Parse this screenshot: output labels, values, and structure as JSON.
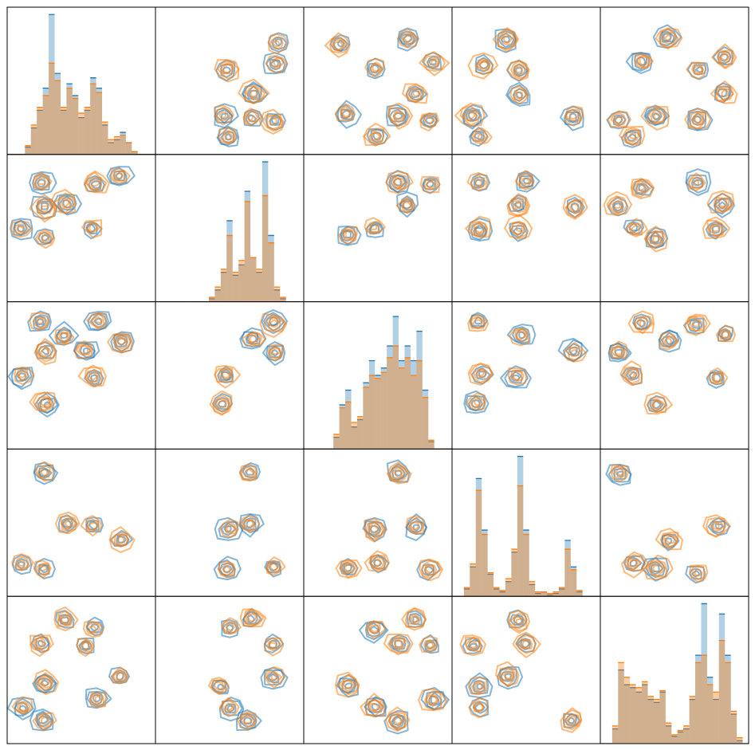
{
  "colors": [
    "#1f77b4",
    "#ff7f0e"
  ],
  "chart_data": [
    {
      "type": "histogram",
      "xlim": [
        0,
        100
      ],
      "ylim": [
        0,
        100
      ],
      "bins": [
        0,
        4,
        8,
        12,
        16,
        20,
        24,
        28,
        32,
        36,
        40,
        44,
        48,
        52,
        56,
        60,
        64,
        68,
        72,
        76,
        80,
        84,
        88,
        92,
        96,
        100
      ],
      "series": [
        {
          "color": "#1f77b4",
          "values": [
            0,
            0,
            0,
            5,
            18,
            30,
            45,
            95,
            55,
            30,
            48,
            40,
            25,
            30,
            52,
            45,
            20,
            8,
            10,
            15,
            8,
            2,
            0,
            0,
            0
          ]
        },
        {
          "color": "#ff7f0e",
          "values": [
            0,
            0,
            0,
            6,
            20,
            32,
            40,
            62,
            50,
            32,
            45,
            38,
            28,
            32,
            48,
            42,
            22,
            10,
            12,
            13,
            8,
            2,
            0,
            0,
            0
          ]
        }
      ]
    },
    {
      "type": "kde",
      "xlim": [
        0,
        100
      ],
      "ylim": [
        0,
        100
      ],
      "x": [
        49,
        81,
        66,
        46,
        64,
        80,
        49,
        82
      ],
      "y": [
        58,
        61,
        41,
        26,
        25,
        23,
        12,
        75
      ]
    },
    {
      "type": "kde",
      "xlim": [
        0,
        100
      ],
      "ylim": [
        0,
        100
      ],
      "x": [
        48,
        75,
        29,
        64,
        85,
        49,
        70,
        88,
        24
      ],
      "y": [
        59,
        41,
        27,
        26,
        23,
        12,
        79,
        62,
        74
      ]
    },
    {
      "type": "kde",
      "xlim": [
        0,
        100
      ],
      "ylim": [
        0,
        100
      ],
      "x": [
        45,
        22,
        45,
        13,
        19,
        82,
        37
      ],
      "y": [
        57,
        61,
        41,
        26,
        12,
        26,
        79
      ]
    },
    {
      "type": "kde",
      "xlim": [
        0,
        100
      ],
      "ylim": [
        0,
        100
      ],
      "x": [
        28,
        66,
        83,
        12,
        38,
        65,
        21,
        46,
        84
      ],
      "y": [
        63,
        57,
        42,
        24,
        27,
        23,
        12,
        79,
        66
      ]
    },
    {
      "type": "kde",
      "xlim": [
        0,
        100
      ],
      "ylim": [
        0,
        100
      ],
      "x": [
        23,
        59,
        25,
        40,
        10,
        26,
        57,
        76
      ],
      "y": [
        81,
        80,
        64,
        67,
        50,
        44,
        50,
        86
      ]
    },
    {
      "type": "histogram",
      "xlim": [
        0,
        100
      ],
      "ylim": [
        0,
        100
      ],
      "bins": [
        0,
        4,
        8,
        12,
        16,
        20,
        24,
        28,
        32,
        36,
        40,
        44,
        48,
        52,
        56,
        60,
        64,
        68,
        72,
        76,
        80,
        84,
        88,
        92,
        96,
        100
      ],
      "series": [
        {
          "color": "#1f77b4",
          "values": [
            0,
            0,
            0,
            0,
            0,
            0,
            0,
            0,
            0,
            2,
            8,
            20,
            55,
            18,
            25,
            75,
            30,
            20,
            95,
            45,
            8,
            2,
            0,
            0,
            0
          ]
        },
        {
          "color": "#ff7f0e",
          "values": [
            0,
            0,
            0,
            0,
            0,
            0,
            0,
            0,
            0,
            3,
            10,
            22,
            45,
            20,
            28,
            68,
            30,
            22,
            72,
            40,
            10,
            3,
            0,
            0,
            0
          ]
        }
      ]
    },
    {
      "type": "kde",
      "xlim": [
        0,
        100
      ],
      "ylim": [
        0,
        100
      ],
      "x": [
        85,
        69,
        48,
        30,
        64
      ],
      "y": [
        80,
        66,
        50,
        45,
        80
      ]
    },
    {
      "type": "kde",
      "xlim": [
        0,
        100
      ],
      "ylim": [
        0,
        100
      ],
      "x": [
        18,
        50,
        45,
        82,
        18,
        45
      ],
      "y": [
        80,
        81,
        66,
        65,
        49,
        49
      ]
    },
    {
      "type": "kde",
      "xlim": [
        0,
        100
      ],
      "ylim": [
        0,
        100
      ],
      "x": [
        28,
        65,
        83,
        12,
        23,
        38,
        78
      ],
      "y": [
        78,
        81,
        66,
        65,
        50,
        43,
        50
      ]
    },
    {
      "type": "kde",
      "xlim": [
        0,
        100
      ],
      "ylim": [
        0,
        100
      ],
      "x": [
        23,
        39,
        25,
        61,
        53,
        10,
        58,
        26,
        77
      ],
      "y": [
        86,
        77,
        66,
        87,
        66,
        50,
        49,
        31,
        72
      ]
    },
    {
      "type": "kde",
      "xlim": [
        0,
        100
      ],
      "ylim": [
        0,
        100
      ],
      "x": [
        80,
        66,
        81,
        48,
        45
      ],
      "y": [
        86,
        75,
        66,
        50,
        31
      ]
    },
    {
      "type": "histogram",
      "xlim": [
        0,
        100
      ],
      "ylim": [
        0,
        100
      ],
      "bins": [
        0,
        4,
        8,
        12,
        16,
        20,
        24,
        28,
        32,
        36,
        40,
        44,
        48,
        52,
        56,
        60,
        64,
        68,
        72,
        76,
        80,
        84,
        88,
        92,
        96,
        100
      ],
      "series": [
        {
          "color": "#1f77b4",
          "values": [
            0,
            0,
            0,
            0,
            0,
            8,
            30,
            40,
            15,
            20,
            45,
            60,
            50,
            55,
            70,
            90,
            60,
            70,
            60,
            80,
            40,
            5,
            0,
            0,
            0
          ]
        },
        {
          "color": "#ff7f0e",
          "values": [
            0,
            0,
            0,
            0,
            0,
            10,
            28,
            32,
            18,
            22,
            42,
            50,
            48,
            52,
            62,
            70,
            55,
            62,
            50,
            60,
            35,
            6,
            0,
            0,
            0
          ]
        }
      ]
    },
    {
      "type": "kde",
      "xlim": [
        0,
        100
      ],
      "ylim": [
        0,
        100
      ],
      "x": [
        18,
        47,
        82,
        20,
        43,
        17
      ],
      "y": [
        86,
        77,
        66,
        51,
        49,
        31
      ]
    },
    {
      "type": "kde",
      "xlim": [
        0,
        100
      ],
      "ylim": [
        0,
        100
      ],
      "x": [
        28,
        65,
        84,
        13,
        22,
        79,
        38,
        46
      ],
      "y": [
        86,
        85,
        77,
        66,
        51,
        49,
        31,
        73
      ]
    },
    {
      "type": "kde",
      "xlim": [
        0,
        100
      ],
      "ylim": [
        0,
        100
      ],
      "x": [
        25,
        41,
        58,
        10,
        25,
        77
      ],
      "y": [
        84,
        49,
        48,
        22,
        18,
        38
      ]
    },
    {
      "type": "kde",
      "xlim": [
        0,
        100
      ],
      "ylim": [
        0,
        100
      ],
      "x": [
        63,
        50,
        63,
        49,
        79
      ],
      "y": [
        84,
        45,
        49,
        19,
        19
      ]
    },
    {
      "type": "kde",
      "xlim": [
        0,
        100
      ],
      "ylim": [
        0,
        100
      ],
      "x": [
        64,
        48,
        75,
        30,
        49,
        85
      ],
      "y": [
        84,
        45,
        48,
        19,
        22,
        19
      ]
    },
    {
      "type": "histogram",
      "xlim": [
        0,
        100
      ],
      "ylim": [
        0,
        100
      ],
      "bins": [
        0,
        4,
        8,
        12,
        16,
        20,
        24,
        28,
        32,
        36,
        40,
        44,
        48,
        52,
        56,
        60,
        64,
        68,
        72,
        76,
        80,
        84,
        88,
        92,
        96,
        100
      ],
      "series": [
        {
          "color": "#1f77b4",
          "values": [
            0,
            0,
            5,
            20,
            80,
            45,
            15,
            5,
            3,
            10,
            30,
            95,
            45,
            8,
            2,
            3,
            1,
            2,
            5,
            38,
            20,
            3,
            0,
            0,
            0
          ]
        },
        {
          "color": "#ff7f0e",
          "values": [
            0,
            0,
            6,
            22,
            72,
            42,
            16,
            6,
            4,
            12,
            32,
            75,
            42,
            10,
            3,
            3,
            2,
            3,
            6,
            32,
            18,
            4,
            0,
            0,
            0
          ]
        }
      ]
    },
    {
      "type": "kde",
      "xlim": [
        0,
        100
      ],
      "ylim": [
        0,
        100
      ],
      "x": [
        13,
        79,
        22,
        38,
        65,
        46
      ],
      "y": [
        84,
        48,
        23,
        19,
        16,
        38
      ]
    },
    {
      "type": "kde",
      "xlim": [
        0,
        100
      ],
      "ylim": [
        0,
        100
      ],
      "x": [
        39,
        58,
        23,
        53,
        26,
        61,
        10,
        25,
        76
      ],
      "y": [
        85,
        78,
        68,
        67,
        41,
        30,
        24,
        15,
        46
      ]
    },
    {
      "type": "kde",
      "xlim": [
        0,
        100
      ],
      "ylim": [
        0,
        100
      ],
      "x": [
        65,
        50,
        80,
        43,
        50,
        63,
        80
      ],
      "y": [
        85,
        78,
        67,
        39,
        24,
        15,
        45
      ]
    },
    {
      "type": "kde",
      "xlim": [
        0,
        100
      ],
      "ylim": [
        0,
        100
      ],
      "x": [
        75,
        48,
        85,
        64,
        30,
        48,
        64,
        88
      ],
      "y": [
        85,
        78,
        67,
        67,
        39,
        24,
        15,
        30
      ]
    },
    {
      "type": "kde",
      "xlim": [
        0,
        100
      ],
      "ylim": [
        0,
        100
      ],
      "x": [
        45,
        50,
        14,
        18,
        19,
        81,
        37
      ],
      "y": [
        83,
        68,
        67,
        39,
        24,
        15,
        46
      ]
    },
    {
      "type": "histogram",
      "xlim": [
        0,
        100
      ],
      "ylim": [
        0,
        100
      ],
      "bins": [
        0,
        4,
        8,
        12,
        16,
        20,
        24,
        28,
        32,
        36,
        40,
        44,
        48,
        52,
        56,
        60,
        64,
        68,
        72,
        76,
        80,
        84,
        88,
        92,
        96,
        100
      ],
      "series": [
        {
          "color": "#1f77b4",
          "values": [
            0,
            0,
            10,
            50,
            40,
            38,
            35,
            40,
            30,
            28,
            35,
            12,
            5,
            8,
            10,
            30,
            60,
            95,
            45,
            30,
            88,
            60,
            20,
            2,
            0
          ]
        },
        {
          "color": "#ff7f0e",
          "values": [
            0,
            0,
            12,
            55,
            45,
            40,
            38,
            42,
            32,
            30,
            36,
            14,
            6,
            9,
            12,
            32,
            55,
            60,
            40,
            35,
            70,
            55,
            22,
            4,
            0
          ]
        }
      ]
    }
  ]
}
